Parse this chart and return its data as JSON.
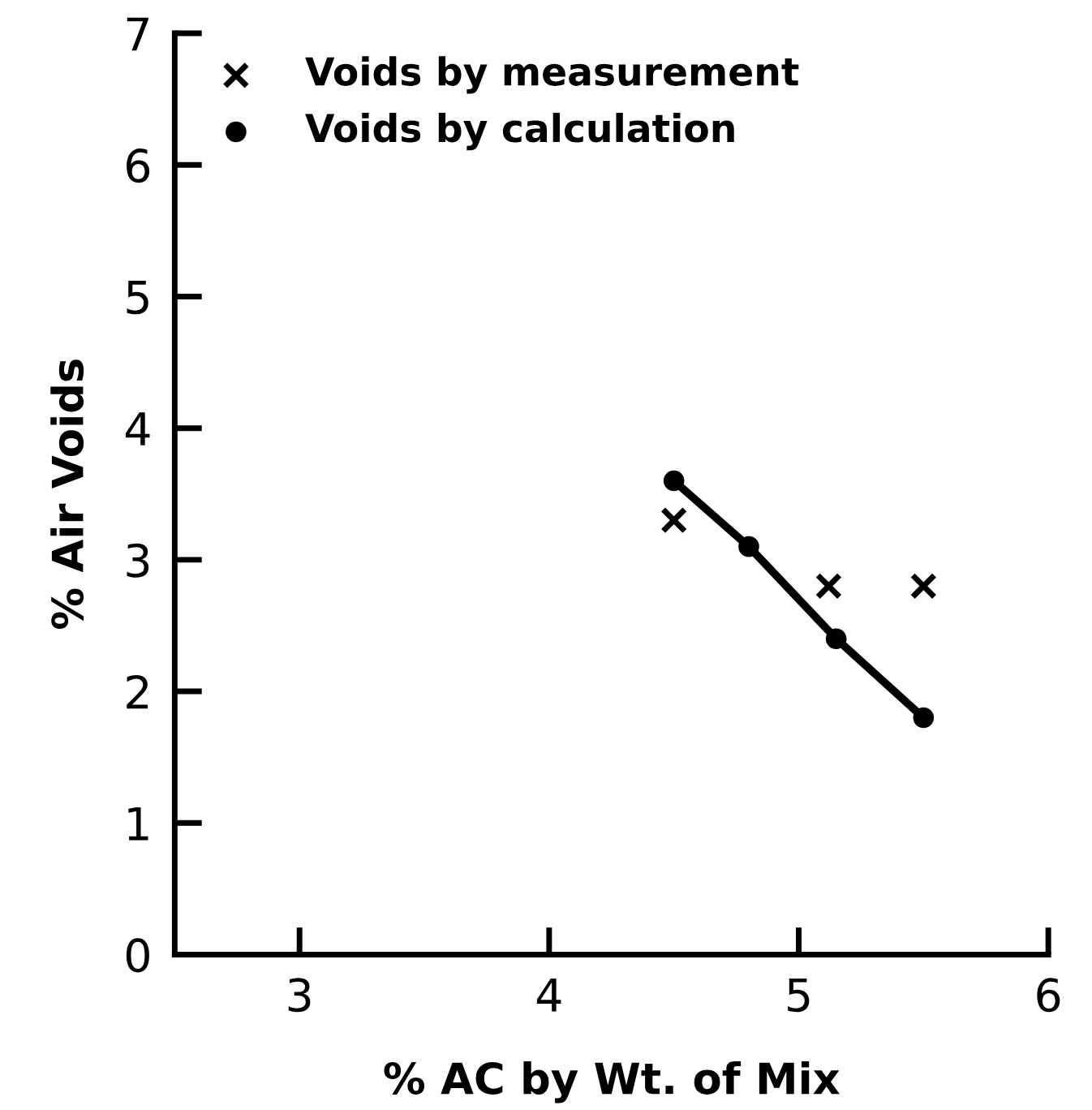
{
  "chart_data": {
    "type": "scatter",
    "xlabel": "% AC by Wt. of Mix",
    "ylabel": "% Air Voids",
    "xlim": [
      2.5,
      6
    ],
    "xticks": [
      3,
      4,
      5,
      6
    ],
    "ylim": [
      0,
      7
    ],
    "yticks": [
      0,
      1,
      2,
      3,
      4,
      5,
      6,
      7
    ],
    "grid": false,
    "legend": "top left",
    "series": [
      {
        "name": "Voids by measurement",
        "marker": "cross",
        "color": "#000000",
        "x": [
          4.5,
          5.12,
          5.5
        ],
        "values": [
          3.3,
          2.8,
          2.8
        ]
      },
      {
        "name": "Voids by calculation",
        "marker": "circle",
        "color": "#000000",
        "x": [
          4.5,
          4.8,
          5.15,
          5.5
        ],
        "values": [
          3.6,
          3.1,
          2.4,
          1.8
        ]
      },
      {
        "type": "line",
        "marker": "none",
        "line_style": "solid",
        "color": "#000000",
        "x": [
          4.5,
          4.8,
          5.15,
          5.5
        ],
        "values": [
          3.6,
          3.1,
          2.4,
          1.8
        ]
      }
    ]
  }
}
